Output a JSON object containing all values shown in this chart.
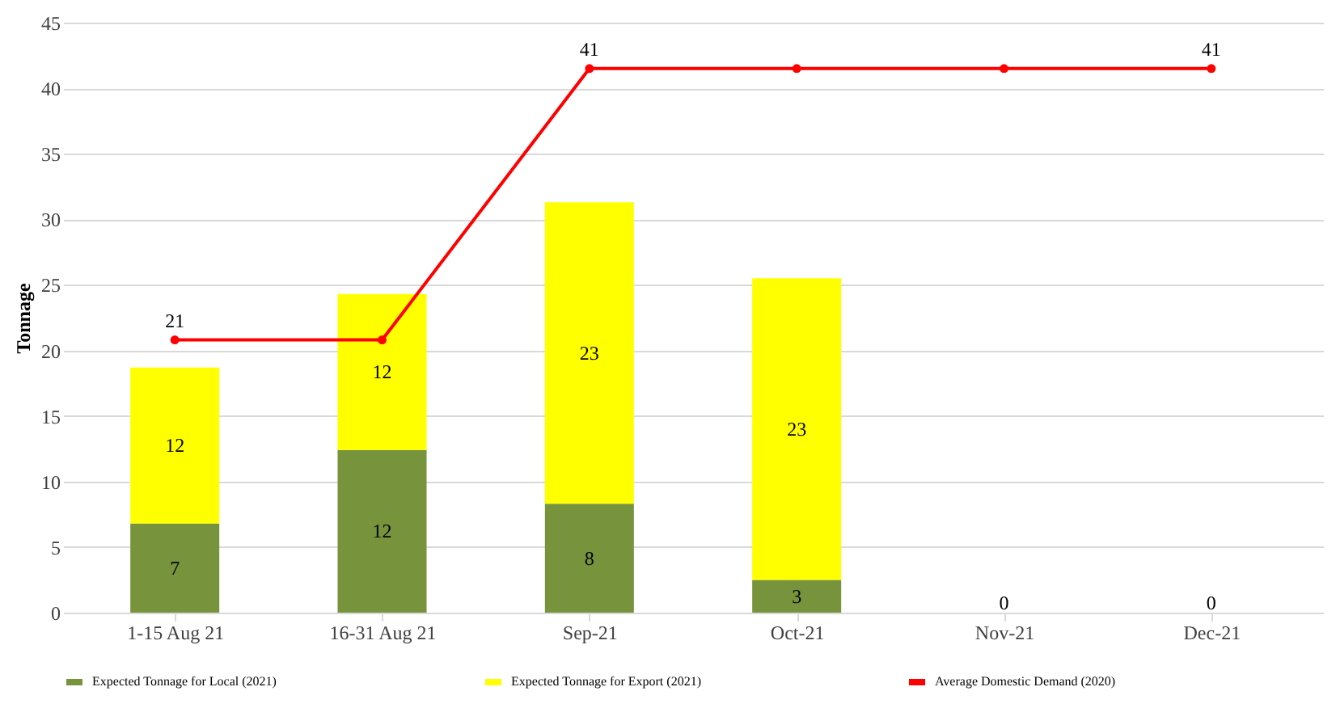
{
  "chart_data": {
    "type": "bar",
    "stacked": true,
    "ylabel": "Tonnage",
    "categories": [
      "1-15 Aug 21",
      "16-31 Aug 21",
      "Sep-21",
      "Oct-21",
      "Nov-21",
      "Dec-21"
    ],
    "series": [
      {
        "name": "Expected Tonnage for Local (2021)",
        "color": "#77933c",
        "values": [
          6.8,
          12.4,
          8.3,
          2.5,
          0,
          0
        ],
        "value_labels": [
          "7",
          "12",
          "8",
          "3",
          "0",
          "0"
        ]
      },
      {
        "name": "Expected Tonnage for Export (2021)",
        "color": "#ffff00",
        "values": [
          11.9,
          11.9,
          23.0,
          23.0,
          0,
          0
        ],
        "value_labels": [
          "12",
          "12",
          "23",
          "23",
          null,
          null
        ]
      },
      {
        "name": "Average Domestic Demand (2020)",
        "type": "line",
        "color": "#ff0000",
        "values": [
          20.8,
          20.8,
          41.5,
          41.5,
          41.5,
          41.5
        ],
        "value_labels": [
          "21",
          null,
          "41",
          null,
          null,
          "41"
        ]
      }
    ],
    "ylim": [
      0,
      45
    ],
    "yticks": [
      0,
      5,
      10,
      15,
      20,
      25,
      30,
      35,
      40,
      45
    ],
    "grid": "y",
    "legend": "bottom",
    "marker": "circle",
    "line_style": "solid"
  }
}
